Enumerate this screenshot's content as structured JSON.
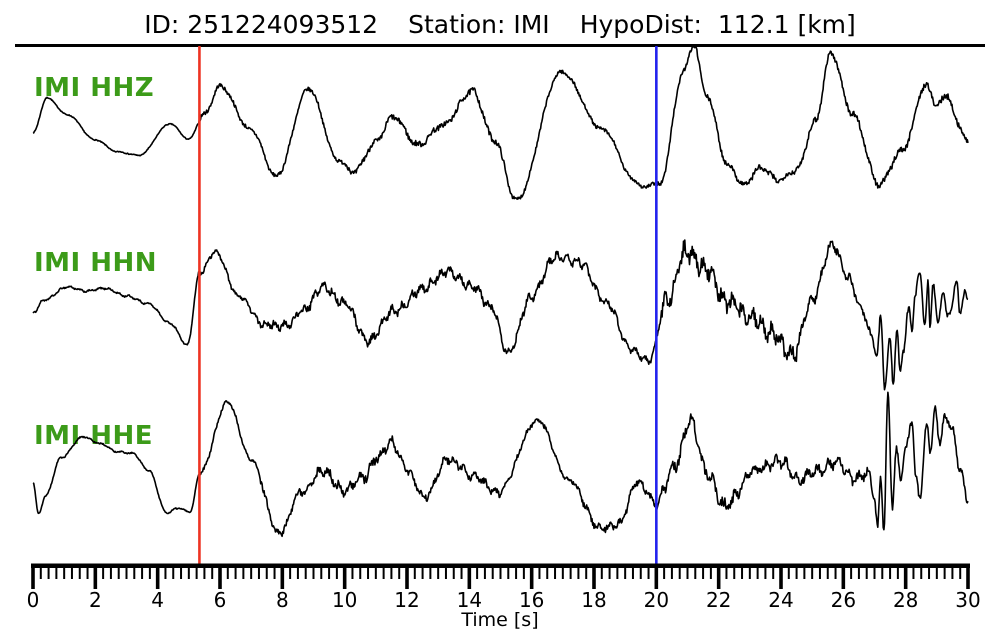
{
  "header": {
    "id_label": "ID:",
    "id_value": "251224093512",
    "station_label": "Station:",
    "station_value": "IMI",
    "hypodist_label": "HypoDist:",
    "hypodist_value": "112.1",
    "hypodist_unit": "[km]"
  },
  "chart_data": {
    "type": "line",
    "title": "ID: 251224093512  Station: IMI  HypoDist: 112.1 [km]",
    "xlabel": "Time [s]",
    "xlim": [
      0,
      30
    ],
    "x_major_tick_step": 2,
    "x_minor_tick_step": 0.25,
    "x_tick_labels": [
      "0",
      "2",
      "4",
      "6",
      "8",
      "10",
      "12",
      "14",
      "16",
      "18",
      "20",
      "22",
      "24",
      "26",
      "28",
      "30"
    ],
    "grid": false,
    "legend": "none",
    "amplitude_units": "arbitrary (no amplitude axis shown)",
    "markers": [
      {
        "name": "red-pick-line",
        "time_s": 5.34,
        "color": "#ee3322"
      },
      {
        "name": "blue-pick-line",
        "time_s": 20.0,
        "color": "#2222ee"
      }
    ],
    "label_color": "#3c9b19",
    "trace_color": "#000000",
    "series": [
      {
        "name": "IMI HHZ",
        "keypoints": [
          [
            0,
            0.03
          ],
          [
            0.45,
            0.53
          ],
          [
            1.1,
            0.29
          ],
          [
            2,
            -0.07
          ],
          [
            2.7,
            -0.24
          ],
          [
            3.4,
            -0.29
          ],
          [
            4.4,
            0.16
          ],
          [
            5,
            -0.06
          ],
          [
            5.5,
            0.3
          ],
          [
            6,
            0.7
          ],
          [
            7,
            0.07
          ],
          [
            7.8,
            -0.59
          ],
          [
            8.85,
            0.66
          ],
          [
            9.8,
            -0.36
          ],
          [
            10.3,
            -0.53
          ],
          [
            11,
            -0.1
          ],
          [
            11.55,
            0.26
          ],
          [
            12.35,
            -0.14
          ],
          [
            13.15,
            0.14
          ],
          [
            14.1,
            0.63
          ],
          [
            14.8,
            -0.07
          ],
          [
            15.5,
            -0.93
          ],
          [
            16.95,
            0.9
          ],
          [
            18.3,
            0.07
          ],
          [
            19.3,
            -0.64
          ],
          [
            19.6,
            -0.76
          ],
          [
            19.9,
            -0.69
          ],
          [
            20.1,
            -0.71
          ],
          [
            20.9,
            0.93
          ],
          [
            21.2,
            1.3
          ],
          [
            21.6,
            0.57
          ],
          [
            22.3,
            -0.43
          ],
          [
            22.8,
            -0.71
          ],
          [
            23.35,
            -0.47
          ],
          [
            23.9,
            -0.64
          ],
          [
            24.5,
            -0.5
          ],
          [
            25.1,
            0.2
          ],
          [
            25.6,
            1.17
          ],
          [
            26.3,
            0.3
          ],
          [
            27.15,
            -0.71
          ],
          [
            27.9,
            -0.21
          ],
          [
            28.65,
            0.71
          ],
          [
            29,
            0.43
          ],
          [
            29.35,
            0.57
          ],
          [
            29.7,
            0.14
          ],
          [
            30,
            -0.1
          ]
        ],
        "noise_segments": [
          [
            0,
            5.3,
            0.01
          ],
          [
            5.3,
            10,
            0.04
          ],
          [
            10,
            15.2,
            0.06
          ],
          [
            15.2,
            20,
            0.04
          ],
          [
            20,
            23,
            0.05
          ],
          [
            23,
            25,
            0.06
          ],
          [
            25,
            30,
            0.06
          ]
        ],
        "noise_freq_hz": 2.2,
        "noise_mix": 0.35
      },
      {
        "name": "IMI HHN",
        "keypoints": [
          [
            0,
            -0.04
          ],
          [
            0.35,
            0.14
          ],
          [
            1.1,
            0.33
          ],
          [
            1.7,
            0.27
          ],
          [
            2.3,
            0.31
          ],
          [
            3,
            0.2
          ],
          [
            3.7,
            0.09
          ],
          [
            4.4,
            -0.19
          ],
          [
            4.95,
            -0.5
          ],
          [
            5.35,
            0.53
          ],
          [
            5.85,
            0.83
          ],
          [
            6.6,
            0.2
          ],
          [
            7.4,
            -0.2
          ],
          [
            8.1,
            -0.23
          ],
          [
            8.7,
            0
          ],
          [
            9.3,
            0.33
          ],
          [
            10,
            0.1
          ],
          [
            10.75,
            -0.44
          ],
          [
            11.6,
            -0.01
          ],
          [
            12.5,
            0.31
          ],
          [
            13.3,
            0.56
          ],
          [
            14.1,
            0.34
          ],
          [
            14.7,
            0.04
          ],
          [
            15.25,
            -0.6
          ],
          [
            16,
            0.2
          ],
          [
            16.75,
            0.76
          ],
          [
            17.5,
            0.69
          ],
          [
            18.4,
            0.11
          ],
          [
            19.2,
            -0.57
          ],
          [
            19.75,
            -0.73
          ],
          [
            20.35,
            0.14
          ],
          [
            20.95,
            0.83
          ],
          [
            21.5,
            0.63
          ],
          [
            22.3,
            0.11
          ],
          [
            23.1,
            -0.11
          ],
          [
            23.7,
            -0.31
          ],
          [
            24.35,
            -0.66
          ],
          [
            25,
            0.14
          ],
          [
            25.65,
            0.93
          ],
          [
            26.2,
            0.43
          ],
          [
            26.6,
            0
          ],
          [
            26.9,
            -0.36
          ],
          [
            27.08,
            -0.67
          ],
          [
            27.2,
            -0.1
          ],
          [
            27.33,
            -1.11
          ],
          [
            27.5,
            -0.43
          ],
          [
            27.6,
            -1.04
          ],
          [
            27.72,
            -0.29
          ],
          [
            27.82,
            -0.9
          ],
          [
            27.92,
            -0.57
          ],
          [
            28.1,
            0
          ],
          [
            28.2,
            -0.26
          ],
          [
            28.3,
            0.21
          ],
          [
            28.46,
            0.53
          ],
          [
            28.62,
            -0.21
          ],
          [
            28.72,
            0.39
          ],
          [
            28.78,
            -0.24
          ],
          [
            28.88,
            0.39
          ],
          [
            29.04,
            -0.19
          ],
          [
            29.2,
            0.29
          ],
          [
            29.33,
            -0.11
          ],
          [
            29.65,
            0.36
          ],
          [
            29.74,
            -0.04
          ],
          [
            29.9,
            0.26
          ],
          [
            30,
            0.1
          ]
        ],
        "noise_segments": [
          [
            0,
            5.3,
            0.02
          ],
          [
            5.3,
            7.2,
            0.05
          ],
          [
            7.2,
            11,
            0.09
          ],
          [
            11,
            15,
            0.1
          ],
          [
            15,
            18,
            0.09
          ],
          [
            18,
            20,
            0.07
          ],
          [
            20,
            24.5,
            0.19
          ],
          [
            24.5,
            26.5,
            0.1
          ],
          [
            26.5,
            30,
            0.07
          ]
        ],
        "noise_freq_hz": 3.2,
        "noise_mix": 0.5
      },
      {
        "name": "IMI HHE",
        "keypoints": [
          [
            0,
            -0.03
          ],
          [
            0.18,
            -0.47
          ],
          [
            0.4,
            -0.22
          ],
          [
            0.9,
            0.31
          ],
          [
            1.6,
            0.6
          ],
          [
            2.2,
            0.5
          ],
          [
            2.7,
            0.39
          ],
          [
            3.2,
            0.37
          ],
          [
            3.7,
            0.14
          ],
          [
            4.3,
            -0.46
          ],
          [
            4.65,
            -0.39
          ],
          [
            5.05,
            -0.44
          ],
          [
            5.35,
            0.1
          ],
          [
            6.25,
            1.08
          ],
          [
            7,
            0.28
          ],
          [
            7.9,
            -0.75
          ],
          [
            8.6,
            -0.17
          ],
          [
            9.3,
            0.13
          ],
          [
            10,
            -0.15
          ],
          [
            10.6,
            0.03
          ],
          [
            11.05,
            0.31
          ],
          [
            11.5,
            0.54
          ],
          [
            12,
            0.14
          ],
          [
            12.55,
            -0.24
          ],
          [
            13.3,
            0.29
          ],
          [
            14.2,
            0.04
          ],
          [
            14.9,
            -0.18
          ],
          [
            16.2,
            0.83
          ],
          [
            17.2,
            0
          ],
          [
            18.2,
            -0.67
          ],
          [
            18.8,
            -0.61
          ],
          [
            19.4,
            -0.03
          ],
          [
            20,
            -0.32
          ],
          [
            20.6,
            0.2
          ],
          [
            21.1,
            0.85
          ],
          [
            21.6,
            0.1
          ],
          [
            22.2,
            -0.36
          ],
          [
            23.2,
            0.15
          ],
          [
            24,
            0.26
          ],
          [
            24.6,
            0.01
          ],
          [
            25.2,
            0.14
          ],
          [
            25.8,
            0.25
          ],
          [
            26.35,
            0.01
          ],
          [
            26.8,
            0.1
          ],
          [
            27,
            -0.24
          ],
          [
            27.1,
            -0.65
          ],
          [
            27.2,
            0
          ],
          [
            27.3,
            -0.69
          ],
          [
            27.43,
            1.22
          ],
          [
            27.57,
            -0.39
          ],
          [
            27.7,
            0.46
          ],
          [
            27.85,
            -0.03
          ],
          [
            27.98,
            0.46
          ],
          [
            28.2,
            0.76
          ],
          [
            28.33,
            0.07
          ],
          [
            28.46,
            -0.28
          ],
          [
            28.68,
            0.83
          ],
          [
            28.8,
            0.35
          ],
          [
            28.94,
            1.04
          ],
          [
            29.1,
            0.49
          ],
          [
            29.26,
            0.9
          ],
          [
            29.51,
            0.69
          ],
          [
            29.74,
            0.14
          ],
          [
            30,
            -0.28
          ]
        ],
        "noise_segments": [
          [
            0,
            5.3,
            0.015
          ],
          [
            5.3,
            7.2,
            0.035
          ],
          [
            7.2,
            9,
            0.07
          ],
          [
            9,
            12,
            0.1
          ],
          [
            12,
            15,
            0.08
          ],
          [
            15,
            17.3,
            0.05
          ],
          [
            17.3,
            20,
            0.08
          ],
          [
            20,
            23,
            0.125
          ],
          [
            23,
            26.8,
            0.11
          ],
          [
            26.8,
            30,
            0.07
          ]
        ],
        "noise_freq_hz": 3.0,
        "noise_mix": 0.45
      }
    ]
  }
}
